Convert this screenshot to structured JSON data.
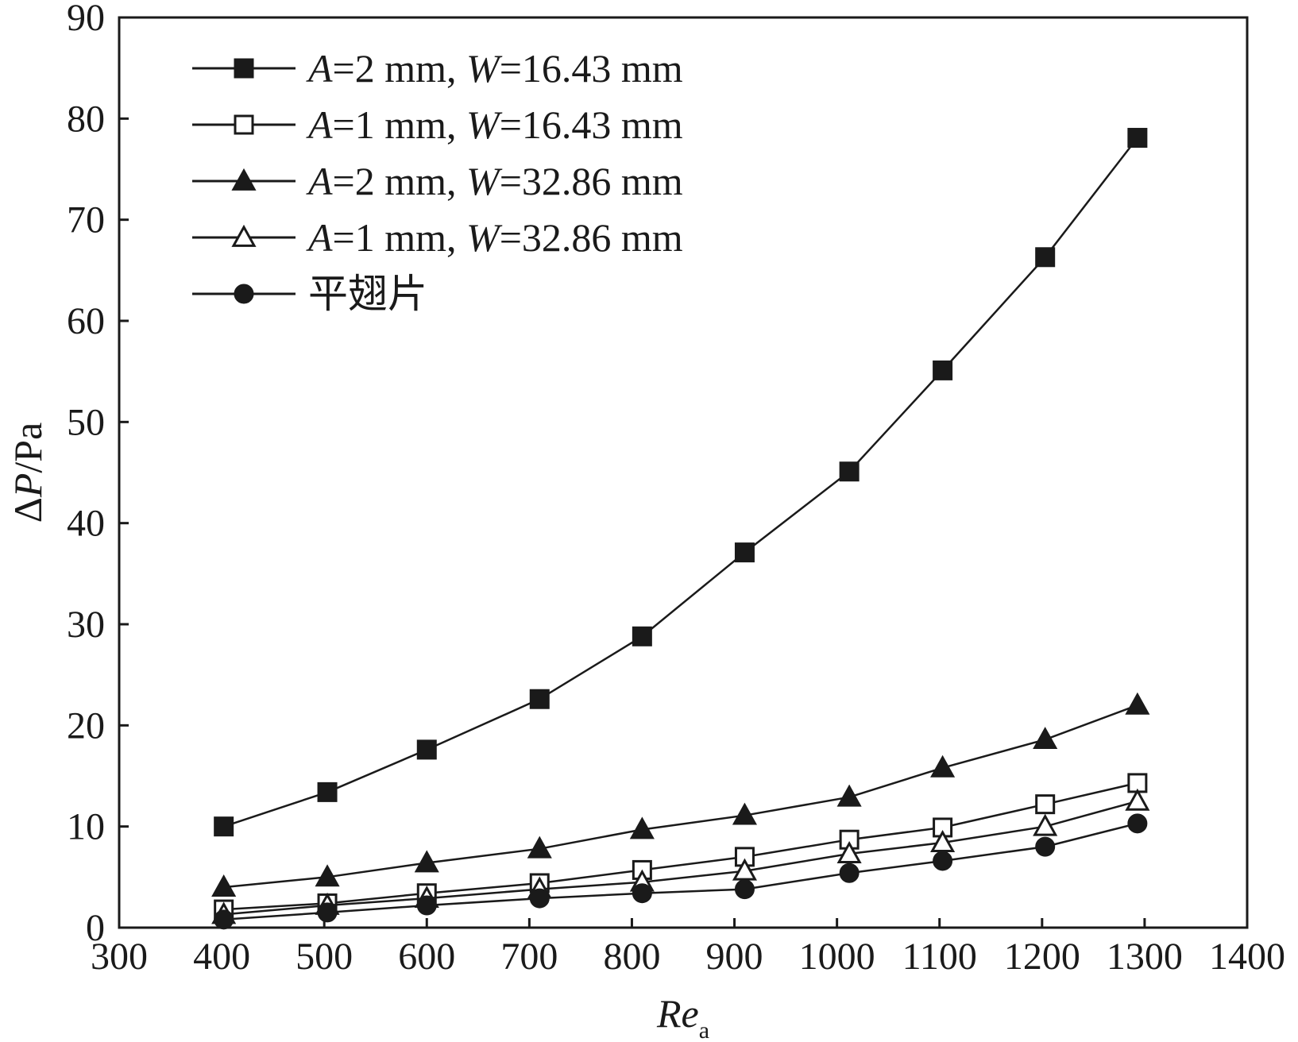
{
  "chart_data": {
    "type": "line",
    "title": "",
    "xlabel": {
      "main": "Re",
      "sub": "a"
    },
    "ylabel": {
      "delta": "Δ",
      "var": "P",
      "unit": "/Pa"
    },
    "xlim": [
      300,
      1400
    ],
    "ylim": [
      0,
      90
    ],
    "xticks": [
      300,
      400,
      500,
      600,
      700,
      800,
      900,
      1000,
      1100,
      1200,
      1300,
      1400
    ],
    "yticks": [
      0,
      10,
      20,
      30,
      40,
      50,
      60,
      70,
      80,
      90
    ],
    "grid": false,
    "legend_position": "top-left",
    "series": [
      {
        "name": "A=2 mm, W=16.43 mm",
        "label_parts": [
          "A",
          "=2 mm, ",
          "W",
          "=16.43 mm"
        ],
        "marker": "square-filled",
        "x": [
          402,
          503,
          600,
          710,
          810,
          910,
          1012,
          1103,
          1203,
          1293
        ],
        "values": [
          10.0,
          13.4,
          17.6,
          22.6,
          28.8,
          37.1,
          45.1,
          55.1,
          66.3,
          78.1
        ]
      },
      {
        "name": "A=1 mm, W=16.43 mm",
        "label_parts": [
          "A",
          "=1 mm, ",
          "W",
          "=16.43 mm"
        ],
        "marker": "square-open",
        "x": [
          402,
          503,
          600,
          710,
          810,
          910,
          1012,
          1103,
          1203,
          1293
        ],
        "values": [
          1.8,
          2.4,
          3.4,
          4.4,
          5.7,
          7.0,
          8.7,
          9.9,
          12.2,
          14.3
        ]
      },
      {
        "name": "A=2 mm, W=32.86 mm",
        "label_parts": [
          "A",
          "=2 mm, ",
          "W",
          "=32.86 mm"
        ],
        "marker": "triangle-filled",
        "x": [
          402,
          503,
          600,
          710,
          810,
          910,
          1012,
          1103,
          1203,
          1293
        ],
        "values": [
          4.0,
          5.0,
          6.4,
          7.8,
          9.7,
          11.1,
          12.9,
          15.8,
          18.6,
          22.0
        ]
      },
      {
        "name": "A=1 mm, W=32.86 mm",
        "label_parts": [
          "A",
          "=1 mm, ",
          "W",
          "=32.86 mm"
        ],
        "marker": "triangle-open",
        "x": [
          402,
          503,
          600,
          710,
          810,
          910,
          1012,
          1103,
          1203,
          1293
        ],
        "values": [
          1.3,
          2.2,
          2.9,
          3.8,
          4.5,
          5.6,
          7.3,
          8.4,
          10.0,
          12.5
        ]
      },
      {
        "name": "平翅片",
        "label_parts": [
          "",
          "平翅片",
          "",
          ""
        ],
        "marker": "circle-filled",
        "x": [
          402,
          503,
          600,
          710,
          810,
          910,
          1012,
          1103,
          1203,
          1293
        ],
        "values": [
          0.8,
          1.5,
          2.2,
          2.9,
          3.4,
          3.8,
          5.4,
          6.6,
          8.0,
          10.3
        ]
      }
    ]
  }
}
